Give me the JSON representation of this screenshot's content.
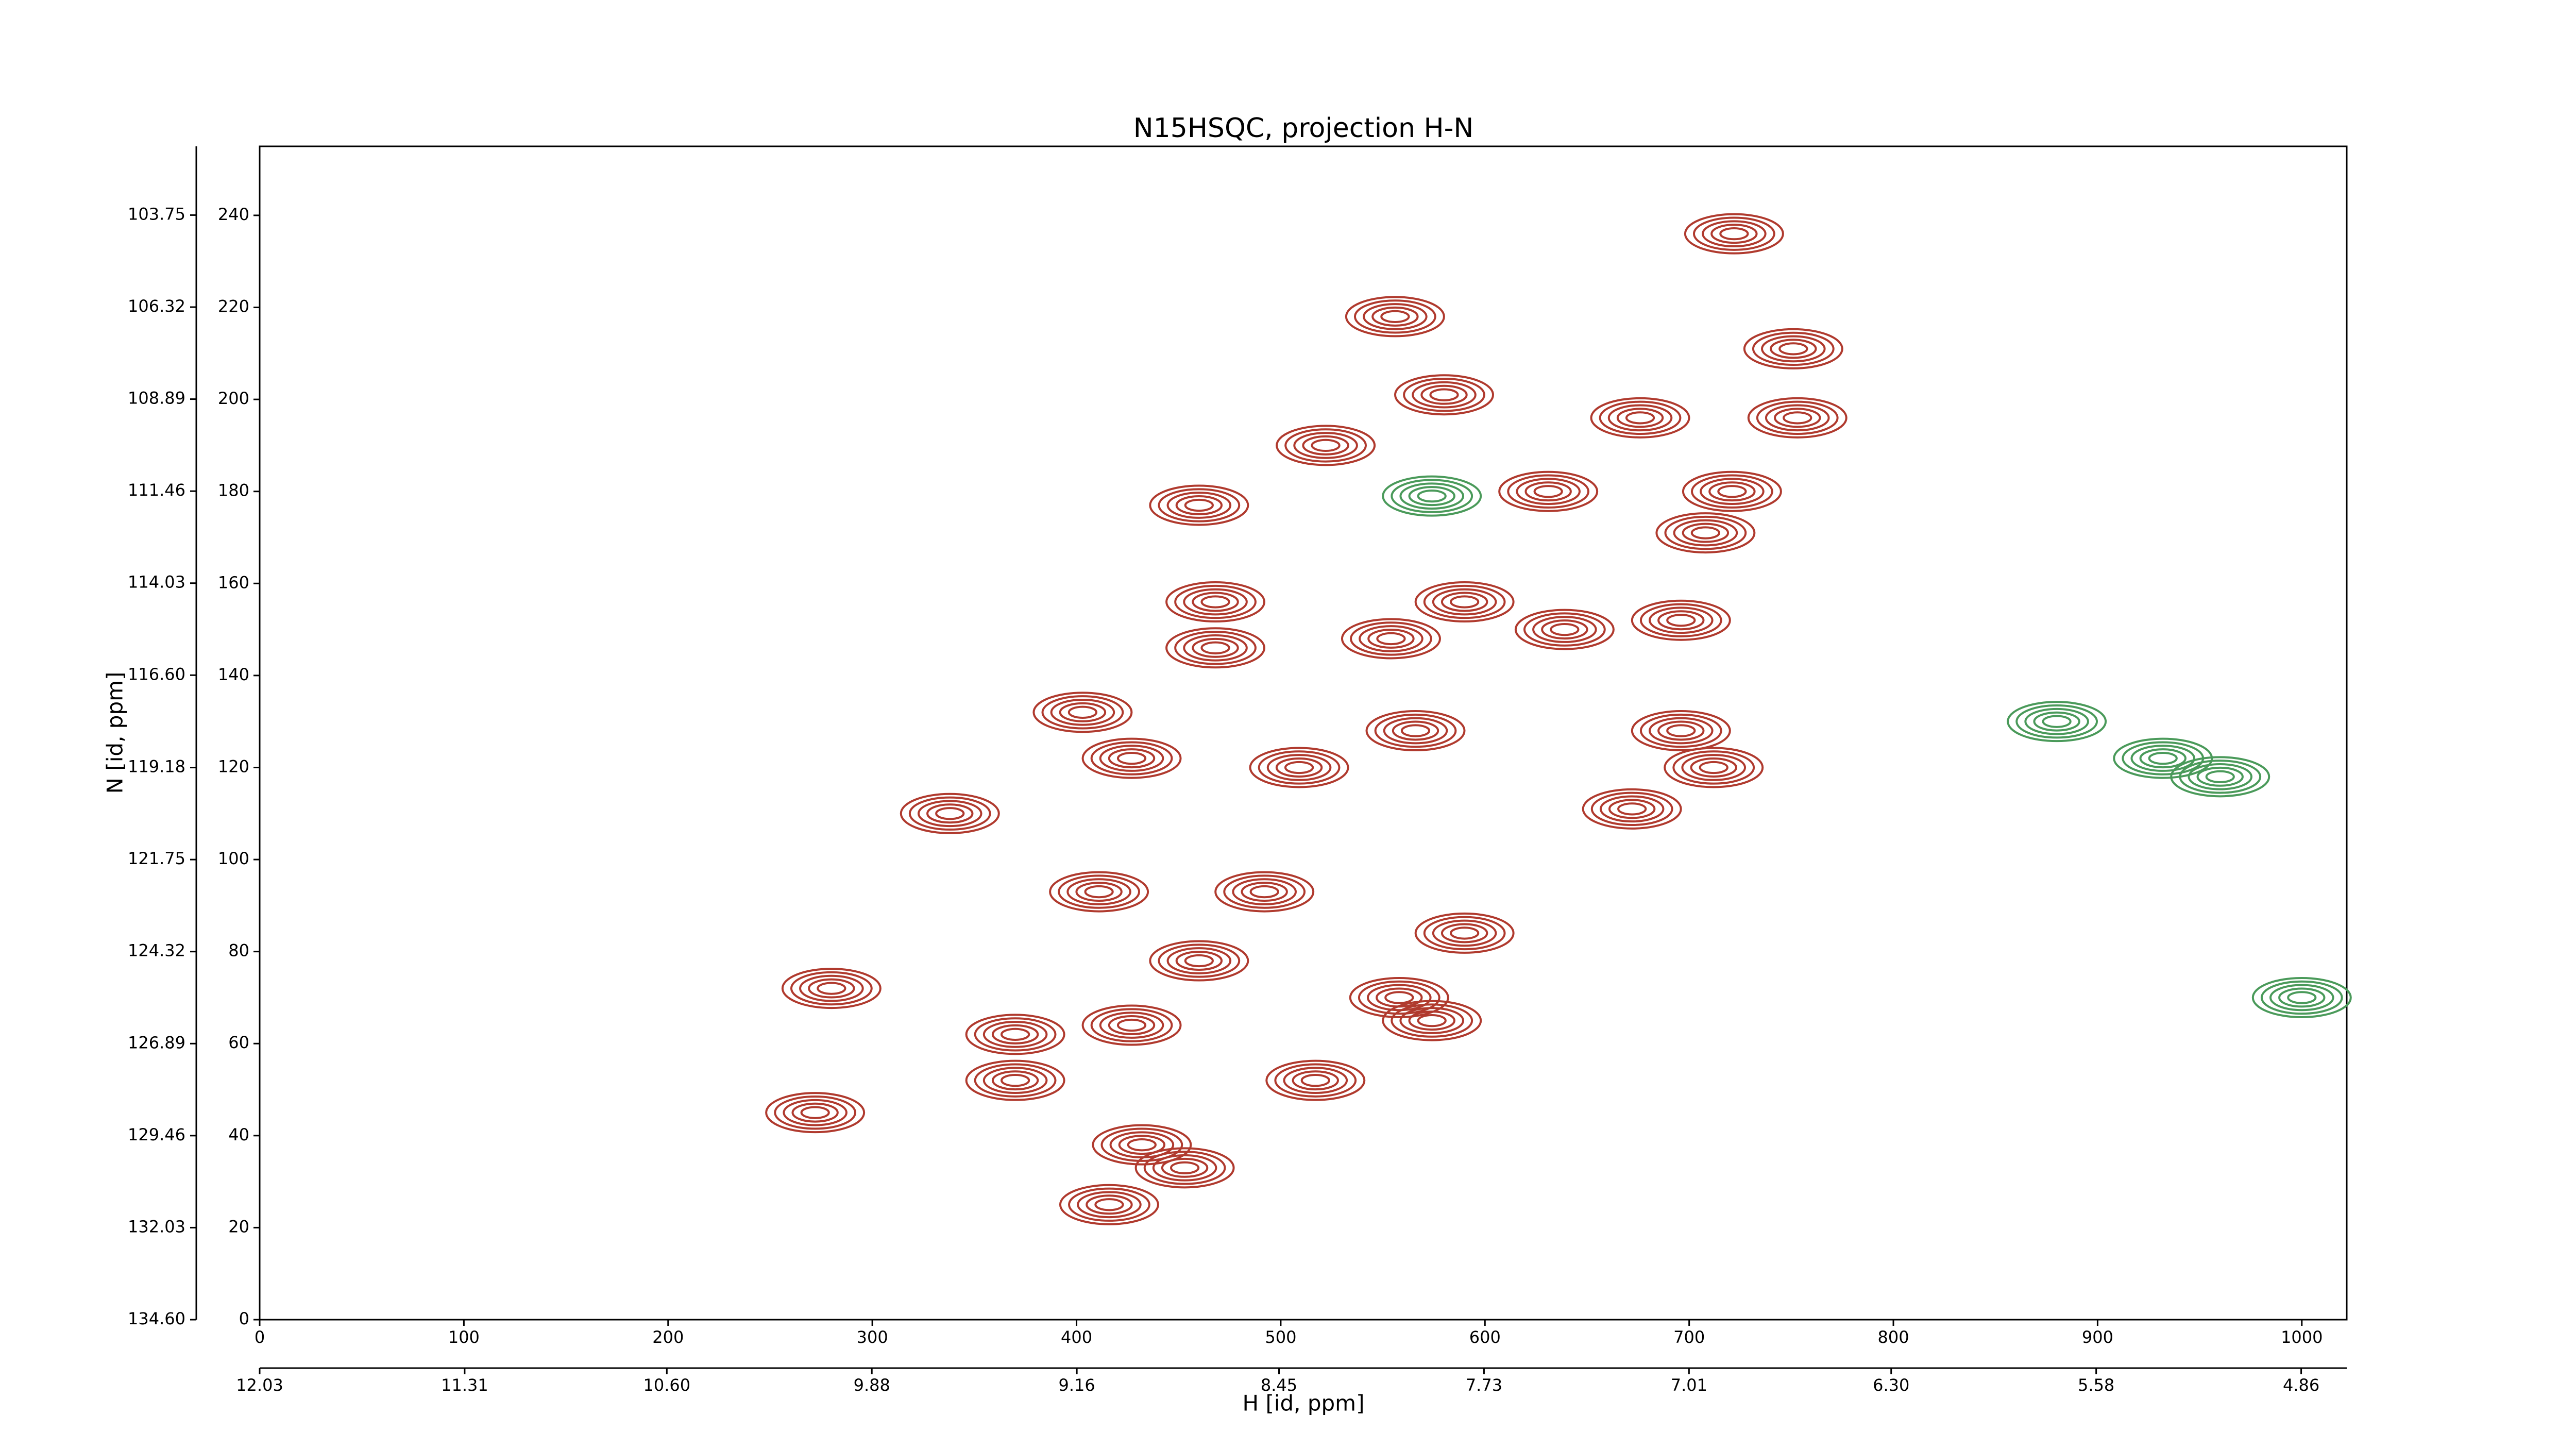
{
  "chart_data": {
    "type": "contour",
    "title": "N15HSQC, projection H-N",
    "xlabel": "H [id, ppm]",
    "ylabel": "N [id, ppm]",
    "xlim": [
      0,
      1022
    ],
    "xticks": [
      0,
      100,
      200,
      300,
      400,
      500,
      600,
      700,
      800,
      900,
      1000
    ],
    "x2lim": [
      12.03,
      4.7
    ],
    "x2ticks": [
      12.03,
      11.31,
      {
        "value": 10.6,
        "label": "10.60"
      },
      9.88,
      9.16,
      8.45,
      7.73,
      7.01,
      {
        "value": 6.3,
        "label": "6.30"
      },
      5.58,
      4.86
    ],
    "ylim": [
      0,
      255
    ],
    "yticks": [
      0,
      20,
      40,
      60,
      80,
      100,
      120,
      140,
      160,
      180,
      200,
      220,
      240
    ],
    "y2lim": [
      134.6,
      101.83
    ],
    "y2ticks": [
      {
        "value": 134.6,
        "label": "134.60"
      },
      132.03,
      129.46,
      126.89,
      124.32,
      121.75,
      119.18,
      {
        "value": 116.6,
        "label": "116.60"
      },
      114.03,
      111.46,
      108.89,
      106.32,
      103.75
    ],
    "series": [
      {
        "color": "#b03a2e",
        "x": [
          556,
          580,
          751,
          676,
          522,
          753,
          460,
          631,
          721,
          708,
          468,
          590,
          468,
          554,
          639,
          696,
          403,
          427,
          696,
          712,
          672,
          338,
          566,
          509,
          411,
          492,
          590,
          460,
          280,
          558,
          370,
          427,
          574,
          370,
          517,
          272,
          432,
          453,
          416,
          722
        ],
        "y": [
          218,
          201,
          211,
          196,
          190,
          196,
          177,
          180,
          180,
          171,
          156,
          156,
          146,
          148,
          150,
          152,
          132,
          122,
          128,
          120,
          111,
          110,
          128,
          120,
          93,
          93,
          84,
          78,
          72,
          70,
          62,
          64,
          65,
          52,
          52,
          45,
          38,
          33,
          25,
          236
        ]
      },
      {
        "color": "#4a9a5a",
        "x": [
          932,
          574,
          960,
          1000,
          880
        ],
        "y": [
          122,
          179,
          118,
          70,
          130
        ]
      }
    ]
  }
}
